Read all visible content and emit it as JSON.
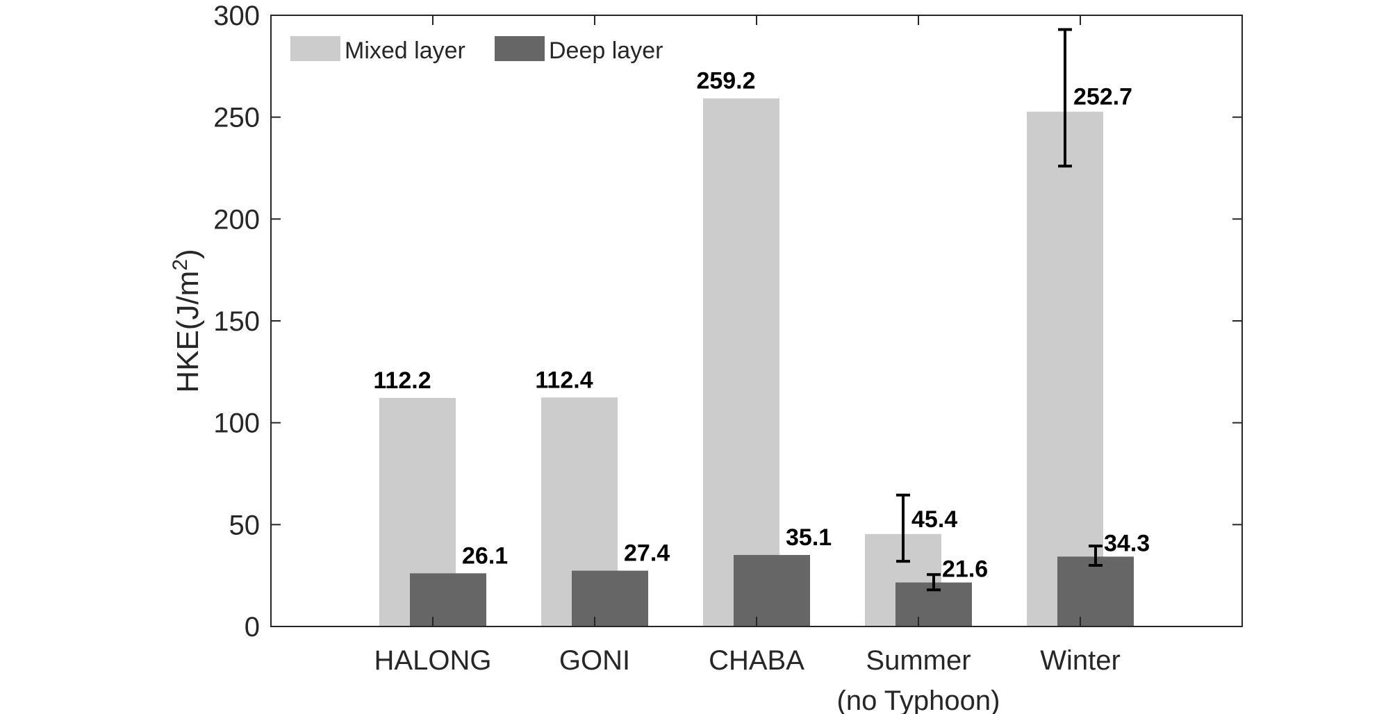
{
  "chart_data": {
    "type": "bar",
    "categories": [
      [
        "HALONG"
      ],
      [
        "GONI"
      ],
      [
        "CHABA"
      ],
      [
        "Summer",
        "(no Typhoon)"
      ],
      [
        "Winter"
      ]
    ],
    "series": [
      {
        "name": "Mixed layer",
        "color": "#cccccc",
        "values": [
          112.2,
          112.4,
          259.2,
          45.4,
          252.7
        ],
        "labels": [
          "112.2",
          "112.4",
          "259.2",
          "45.4",
          "252.7"
        ],
        "error": [
          null,
          null,
          null,
          [
            32,
            64.5
          ],
          [
            226,
            293
          ]
        ]
      },
      {
        "name": "Deep layer",
        "color": "#666666",
        "values": [
          26.1,
          27.4,
          35.1,
          21.6,
          34.3
        ],
        "labels": [
          "26.1",
          "27.4",
          "35.1",
          "21.6",
          "34.3"
        ],
        "error": [
          null,
          null,
          null,
          [
            18,
            25.5
          ],
          [
            30,
            39.5
          ]
        ]
      }
    ],
    "title": "",
    "xlabel": "",
    "ylabel_main": "HKE(J/m",
    "ylabel_sup": "2",
    "ylabel_close": ")",
    "ylim": [
      0,
      300
    ],
    "yticks": [
      0,
      50,
      100,
      150,
      200,
      250,
      300
    ],
    "xlim": [
      0,
      6
    ],
    "grid": false,
    "legend_position": "top-left"
  }
}
